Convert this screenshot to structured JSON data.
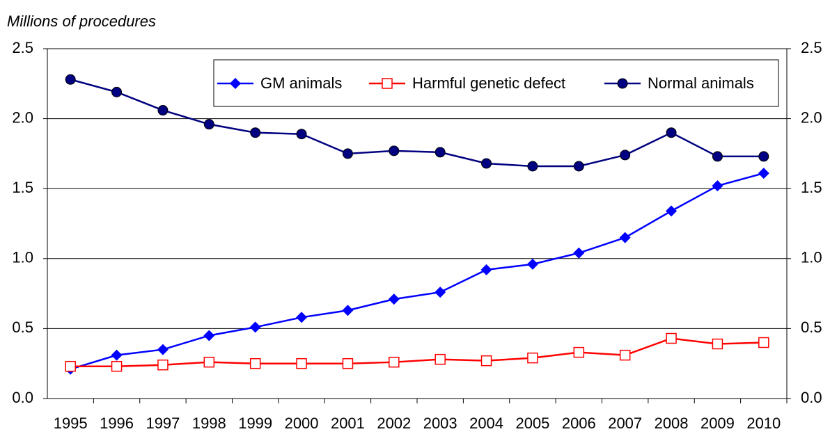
{
  "chart_data": {
    "type": "line",
    "y_label": "Millions of procedures",
    "categories": [
      "1995",
      "1996",
      "1997",
      "1998",
      "1999",
      "2000",
      "2001",
      "2002",
      "2003",
      "2004",
      "2005",
      "2006",
      "2007",
      "2008",
      "2009",
      "2010"
    ],
    "series": [
      {
        "name": "GM animals",
        "color": "#0000ff",
        "marker": "diamond",
        "values": [
          0.21,
          0.31,
          0.35,
          0.45,
          0.51,
          0.58,
          0.63,
          0.71,
          0.76,
          0.92,
          0.96,
          1.04,
          1.15,
          1.34,
          1.52,
          1.61
        ]
      },
      {
        "name": "Harmful genetic defect",
        "color": "#ff0000",
        "marker": "open-square",
        "values": [
          0.23,
          0.23,
          0.24,
          0.26,
          0.25,
          0.25,
          0.25,
          0.26,
          0.28,
          0.27,
          0.29,
          0.33,
          0.31,
          0.43,
          0.39,
          0.4
        ]
      },
      {
        "name": "Normal animals",
        "color": "#000080",
        "marker": "circle",
        "values": [
          2.28,
          2.19,
          2.06,
          1.96,
          1.9,
          1.89,
          1.75,
          1.77,
          1.76,
          1.68,
          1.66,
          1.66,
          1.74,
          1.9,
          1.73,
          1.73
        ]
      }
    ],
    "ylim": [
      0,
      2.5
    ],
    "yticks": [
      {
        "value": 0,
        "label": "0.0"
      },
      0.5,
      {
        "value": 1,
        "label": "1.0"
      },
      1.5,
      {
        "value": 2,
        "label": "2.0"
      },
      2.5
    ],
    "y2lim": [
      0,
      2.5
    ],
    "y2ticks": [
      {
        "value": 0,
        "label": "0.0"
      },
      0.5,
      {
        "value": 1,
        "label": "1.0"
      },
      1.5,
      {
        "value": 2,
        "label": "2.0"
      },
      2.5
    ],
    "grid": true,
    "legend": "top-right"
  }
}
